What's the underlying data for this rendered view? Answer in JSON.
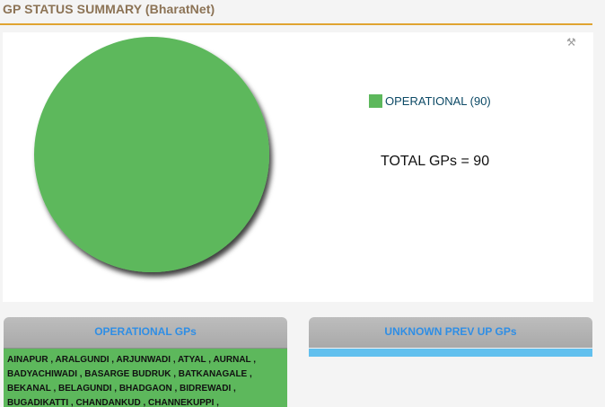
{
  "header": {
    "title": "GP STATUS SUMMARY (BharatNet)"
  },
  "chart_panel": {
    "tool_icon": "wrench-icon",
    "legend": {
      "label": "OPERATIONAL (90)",
      "color": "#5db85c"
    },
    "total_text": "TOTAL GPs = 90"
  },
  "chart_data": {
    "type": "pie",
    "categories": [
      "OPERATIONAL"
    ],
    "values": [
      90
    ],
    "colors": [
      "#5db85c"
    ],
    "legend_placement": "right"
  },
  "panels": {
    "operational": {
      "title": "OPERATIONAL GPs",
      "lines": [
        "AINAPUR , ARALGUNDI , ARJUNWADI , ATYAL , AURNAL ,",
        "BADYACHIWADI , BASARGE BUDRUK , BATKANAGALE ,",
        "BEKANAL , BELAGUNDI , BHADGAON , BIDREWADI ,",
        "BUGADIKATTI , CHANDANKUD , CHANNEKUPPI ,"
      ],
      "body_color": "#5db85c"
    },
    "unknown_prev_up": {
      "title": "UNKNOWN PREV UP GPs",
      "body_color": "#62c0ee"
    }
  }
}
